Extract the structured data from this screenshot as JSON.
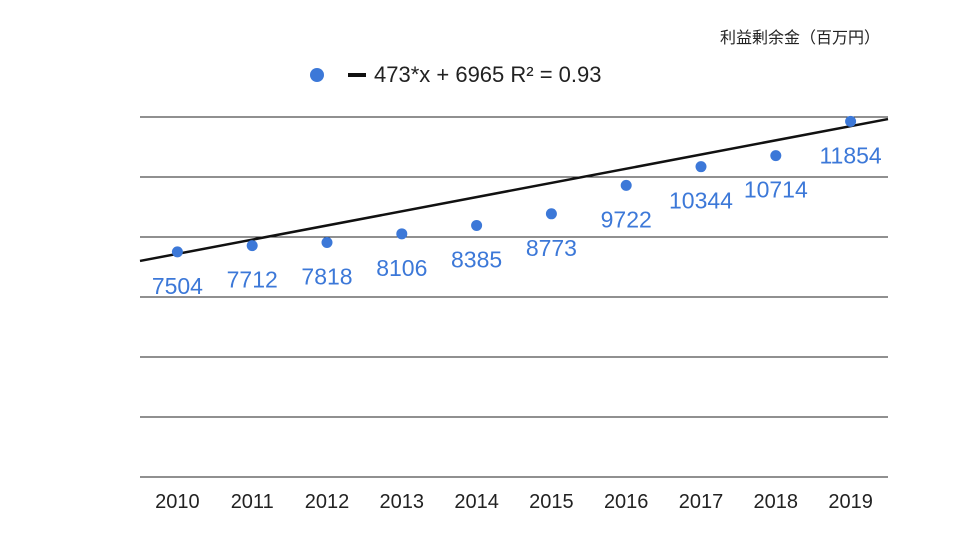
{
  "unit_label": "利益剰余金（百万円）",
  "legend": {
    "trendline_label": "473*x + 6965 R² = 0.93"
  },
  "colors": {
    "points": "#3c78d8",
    "labels": "#3c78d8",
    "trendline": "#111111",
    "grid": "#222222"
  },
  "chart_data": {
    "type": "scatter",
    "title": "",
    "xlabel": "",
    "ylabel": "",
    "x": [
      "2010",
      "2011",
      "2012",
      "2013",
      "2014",
      "2015",
      "2016",
      "2017",
      "2018",
      "2019"
    ],
    "values": [
      7504,
      7712,
      7818,
      8106,
      8385,
      8773,
      9722,
      10344,
      10714,
      11854
    ],
    "data_labels": [
      "7504",
      "7712",
      "7818",
      "8106",
      "8385",
      "8773",
      "9722",
      "10344",
      "10714",
      "11854"
    ],
    "trendline": {
      "slope": 473,
      "intercept": 6965,
      "r2": 0.93
    },
    "ylim": [
      0,
      12000
    ],
    "gridlines": [
      0,
      2000,
      4000,
      6000,
      8000,
      10000,
      12000
    ],
    "grid": true,
    "y_tick_labels_shown": false,
    "legend_position": "top"
  }
}
